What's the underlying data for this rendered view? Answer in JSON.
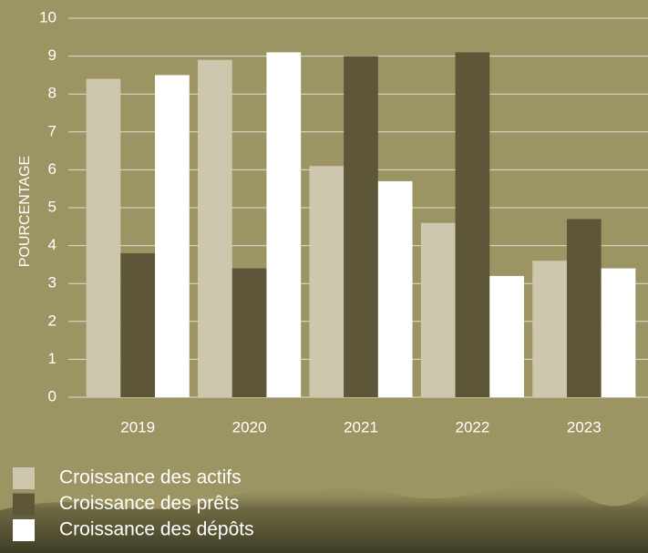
{
  "chart_data": {
    "type": "bar",
    "y_label": "POURCENTAGE",
    "categories": [
      "2019",
      "2020",
      "2021",
      "2022",
      "2023"
    ],
    "series": [
      {
        "name": "Croissance des actifs",
        "color": "#cdc8ad",
        "values": [
          8.4,
          8.9,
          6.1,
          4.6,
          3.6
        ]
      },
      {
        "name": "Croissance des prêts",
        "color": "#5e5638",
        "values": [
          3.8,
          3.4,
          9.0,
          9.1,
          4.7
        ]
      },
      {
        "name": "Croissance des dépôts",
        "color": "#ffffff",
        "values": [
          8.5,
          9.1,
          5.7,
          3.2,
          3.4
        ]
      }
    ],
    "ylim": [
      0,
      10
    ],
    "yticks": [
      0,
      1,
      2,
      3,
      4,
      5,
      6,
      7,
      8,
      9,
      10
    ],
    "grid": true
  }
}
